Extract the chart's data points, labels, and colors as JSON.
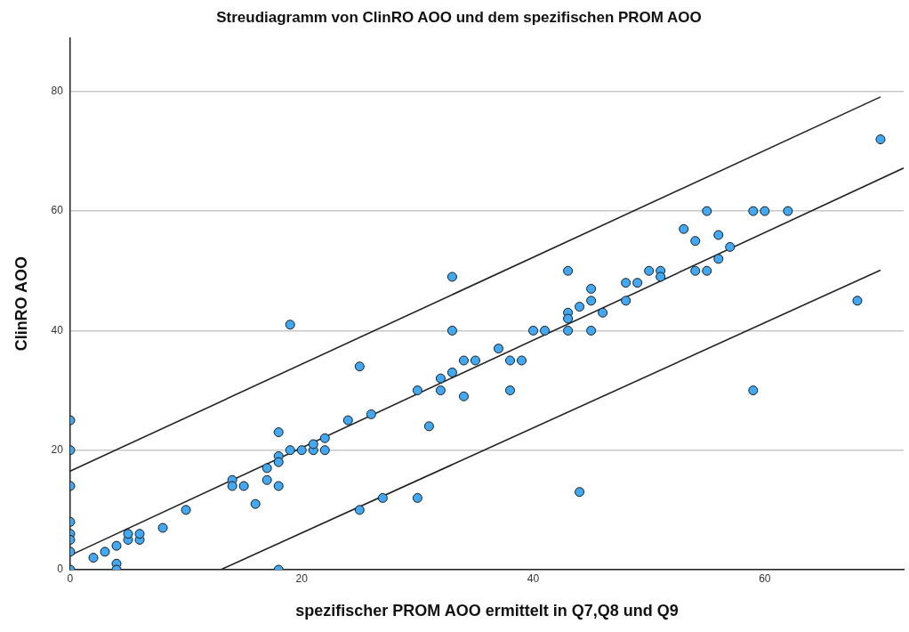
{
  "chart_data": {
    "type": "scatter",
    "title": "Streudiagramm von ClinRO AOO und dem spezifischen PROM AOO",
    "xlabel": "spezifischer PROM AOO ermittelt in Q7,Q8 und Q9",
    "ylabel": "ClinRO AOO",
    "xlim": [
      0,
      72
    ],
    "xticks": [
      0,
      20,
      40,
      60
    ],
    "ylim": [
      0,
      89
    ],
    "yticks": [
      0,
      20,
      40,
      60,
      80
    ],
    "grid": "y",
    "legend": false,
    "marker": "circle",
    "series": [
      {
        "color": "#3fa9f5",
        "x": [
          0,
          0,
          0,
          0,
          0,
          0,
          0,
          0,
          2,
          3,
          4,
          4,
          4,
          5,
          5,
          6,
          6,
          8,
          10,
          14,
          14,
          15,
          16,
          17,
          17,
          18,
          18,
          18,
          18,
          18,
          19,
          19,
          20,
          21,
          21,
          22,
          22,
          24,
          25,
          25,
          26,
          27,
          30,
          30,
          31,
          32,
          32,
          33,
          33,
          33,
          34,
          34,
          35,
          37,
          38,
          38,
          39,
          40,
          41,
          43,
          43,
          43,
          43,
          44,
          44,
          45,
          45,
          45,
          46,
          48,
          48,
          49,
          50,
          51,
          51,
          53,
          54,
          54,
          55,
          55,
          56,
          56,
          57,
          59,
          59,
          60,
          62,
          68,
          70
        ],
        "values": [
          25,
          20,
          14,
          8,
          6,
          5,
          3,
          0,
          2,
          3,
          4,
          1,
          0,
          5,
          6,
          5,
          6,
          7,
          10,
          15,
          14,
          14,
          11,
          17,
          15,
          23,
          19,
          18,
          14,
          0,
          41,
          20,
          20,
          20,
          21,
          20,
          22,
          25,
          34,
          10,
          26,
          12,
          30,
          12,
          24,
          32,
          30,
          49,
          40,
          33,
          35,
          29,
          35,
          37,
          35,
          30,
          35,
          40,
          40,
          50,
          43,
          42,
          40,
          44,
          13,
          47,
          45,
          40,
          43,
          48,
          45,
          48,
          50,
          50,
          49,
          57,
          55,
          50,
          60,
          50,
          56,
          52,
          54,
          60,
          30,
          60,
          60,
          45,
          72
        ]
      },
      {
        "type": "line",
        "marker": "none",
        "color": "#222222",
        "x": [
          0,
          72
        ],
        "values": [
          2.4,
          67.2
        ]
      },
      {
        "type": "line",
        "marker": "none",
        "color": "#222222",
        "x": [
          0,
          70
        ],
        "values": [
          16.5,
          79.1
        ]
      },
      {
        "type": "line",
        "marker": "none",
        "color": "#222222",
        "x": [
          13,
          70
        ],
        "values": [
          0,
          50.1
        ]
      }
    ]
  }
}
